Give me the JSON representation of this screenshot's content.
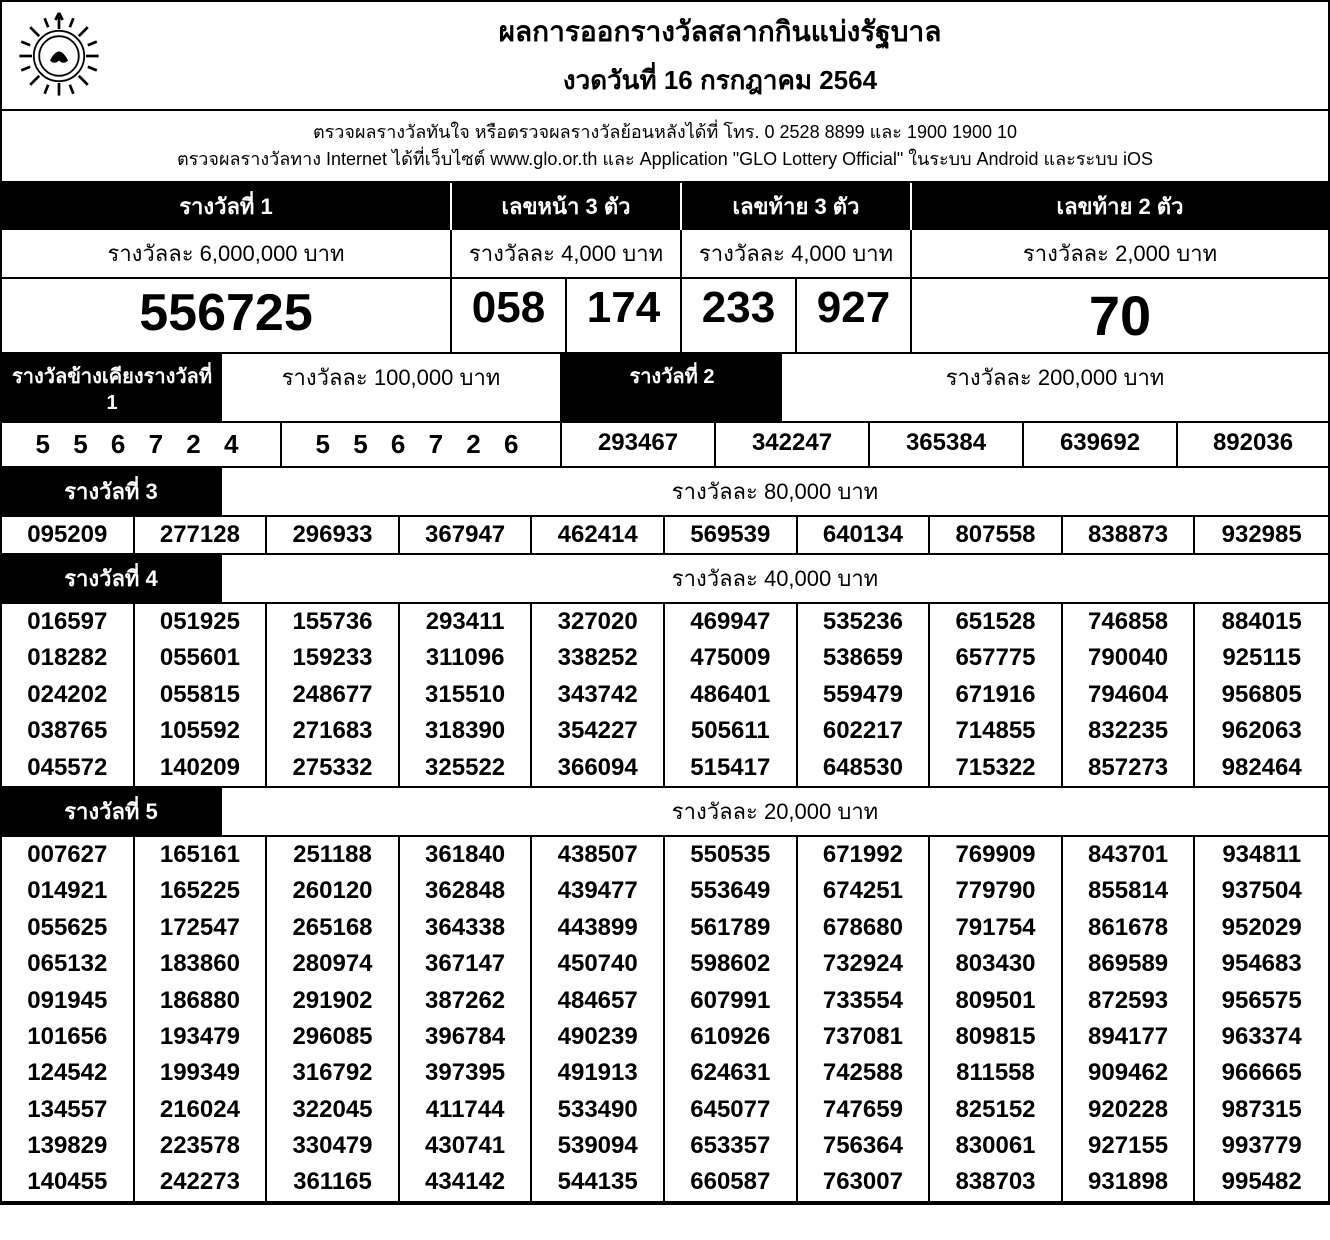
{
  "header": {
    "title": "ผลการออกรางวัลสลากกินแบ่งรัฐบาล",
    "subtitle": "งวดวันที่ 16 กรกฎาคม 2564"
  },
  "info": {
    "line1": "ตรวจผลรางวัลทันใจ  หรือตรวจผลรางวัลย้อนหลังได้ที่  โทร. 0 2528 8899 และ 1900 1900 10",
    "line2": "ตรวจผลรางวัลทาง Internet ได้ที่เว็บไซต์  www.glo.or.th และ Application \"GLO Lottery Official\" ในระบบ Android และระบบ iOS"
  },
  "top": {
    "prize1_label": "รางวัลที่ 1",
    "front3_label": "เลขหน้า 3 ตัว",
    "back3_label": "เลขท้าย 3 ตัว",
    "back2_label": "เลขท้าย 2 ตัว",
    "prize1_amount": "รางวัลละ  6,000,000 บาท",
    "front3_amount": "รางวัลละ  4,000 บาท",
    "back3_amount": "รางวัลละ  4,000 บาท",
    "back2_amount": "รางวัลละ  2,000 บาท",
    "prize1_num": "556725",
    "front3_a": "058",
    "front3_b": "174",
    "back3_a": "233",
    "back3_b": "927",
    "back2": "70"
  },
  "near1": {
    "label": "รางวัลข้างเคียงรางวัลที่ 1",
    "amount": "รางวัลละ 100,000 บาท",
    "num_a": "5 5 6 7 2 4",
    "num_b": "5 5 6 7 2 6"
  },
  "prize2": {
    "label": "รางวัลที่  2",
    "amount": "รางวัลละ 200,000 บาท",
    "nums": [
      "293467",
      "342247",
      "365384",
      "639692",
      "892036"
    ]
  },
  "prize3": {
    "label": "รางวัลที่  3",
    "amount": "รางวัลละ  80,000 บาท",
    "nums": [
      "095209",
      "277128",
      "296933",
      "367947",
      "462414",
      "569539",
      "640134",
      "807558",
      "838873",
      "932985"
    ]
  },
  "prize4": {
    "label": "รางวัลที่  4",
    "amount": "รางวัลละ  40,000 บาท",
    "rows": 5,
    "cols": 10,
    "nums": [
      "016597",
      "051925",
      "155736",
      "293411",
      "327020",
      "469947",
      "535236",
      "651528",
      "746858",
      "884015",
      "018282",
      "055601",
      "159233",
      "311096",
      "338252",
      "475009",
      "538659",
      "657775",
      "790040",
      "925115",
      "024202",
      "055815",
      "248677",
      "315510",
      "343742",
      "486401",
      "559479",
      "671916",
      "794604",
      "956805",
      "038765",
      "105592",
      "271683",
      "318390",
      "354227",
      "505611",
      "602217",
      "714855",
      "832235",
      "962063",
      "045572",
      "140209",
      "275332",
      "325522",
      "366094",
      "515417",
      "648530",
      "715322",
      "857273",
      "982464"
    ]
  },
  "prize5": {
    "label": "รางวัลที่  5",
    "amount": "รางวัลละ  20,000 บาท",
    "rows": 10,
    "cols": 10,
    "nums": [
      "007627",
      "165161",
      "251188",
      "361840",
      "438507",
      "550535",
      "671992",
      "769909",
      "843701",
      "934811",
      "014921",
      "165225",
      "260120",
      "362848",
      "439477",
      "553649",
      "674251",
      "779790",
      "855814",
      "937504",
      "055625",
      "172547",
      "265168",
      "364338",
      "443899",
      "561789",
      "678680",
      "791754",
      "861678",
      "952029",
      "065132",
      "183860",
      "280974",
      "367147",
      "450740",
      "598602",
      "732924",
      "803430",
      "869589",
      "954683",
      "091945",
      "186880",
      "291902",
      "387262",
      "484657",
      "607991",
      "733554",
      "809501",
      "872593",
      "956575",
      "101656",
      "193479",
      "296085",
      "396784",
      "490239",
      "610926",
      "737081",
      "809815",
      "894177",
      "963374",
      "124542",
      "199349",
      "316792",
      "397395",
      "491913",
      "624631",
      "742588",
      "811558",
      "909462",
      "966665",
      "134557",
      "216024",
      "322045",
      "411744",
      "533490",
      "645077",
      "747659",
      "825152",
      "920228",
      "987315",
      "139829",
      "223578",
      "330479",
      "430741",
      "539094",
      "653357",
      "756364",
      "830061",
      "927155",
      "993779",
      "140455",
      "242273",
      "361165",
      "434142",
      "544135",
      "660587",
      "763007",
      "838703",
      "931898",
      "995482"
    ]
  },
  "style": {
    "black": "#000000",
    "white": "#ffffff",
    "body_font": "Arial",
    "big_num_fontsize": 52,
    "body_fontsize": 24
  }
}
